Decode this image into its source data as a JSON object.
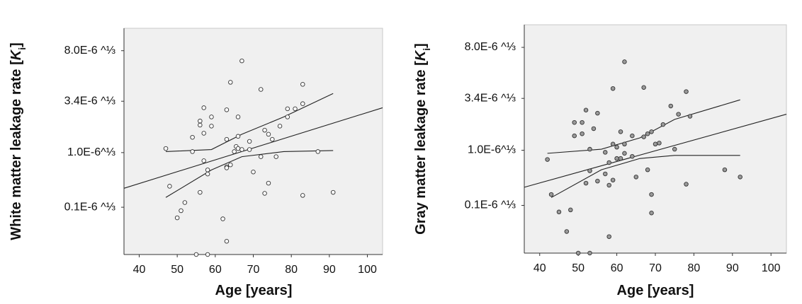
{
  "chart_data": [
    {
      "type": "scatter",
      "ylabel": [
        "White matter leakage rate [",
        "K",
        "i",
        "]"
      ],
      "xlabel": "Age [years]",
      "xlim": [
        36,
        104
      ],
      "xticks": [
        40,
        50,
        60,
        70,
        80,
        90,
        100
      ],
      "ylim": [
        0,
        0.0222
      ],
      "yticks": [
        {
          "value": 0.00464,
          "label": "0.1E-6 ^⅓"
        },
        {
          "value": 0.01,
          "label": "1.0E-6^⅓"
        },
        {
          "value": 0.01504,
          "label": "3.4E-6 ^⅓"
        },
        {
          "value": 0.02,
          "label": "8.0E-6 ^⅓"
        }
      ],
      "background": "#f0f0f0",
      "points": {
        "color": "#ffffff",
        "x": [
          47,
          48,
          50,
          51,
          52,
          54,
          54,
          55,
          56,
          56,
          56,
          57,
          57,
          57,
          58,
          58,
          59,
          59,
          62,
          63,
          63,
          63,
          63,
          63,
          64,
          64,
          65,
          65.5,
          66,
          66,
          66,
          67,
          67,
          69,
          69,
          70,
          72,
          72,
          73,
          73,
          74,
          74,
          75,
          76,
          77,
          79,
          79,
          81,
          83,
          83,
          83,
          87,
          91,
          58
        ],
        "values": [
          0.0104,
          0.0067,
          0.0036,
          0.0043,
          0.0051,
          0.0115,
          0.0101,
          0.0,
          0.0061,
          0.0127,
          0.0131,
          0.0119,
          0.0144,
          0.0092,
          0.0083,
          0.0079,
          0.0135,
          0.0126,
          0.0035,
          0.0013,
          0.0142,
          0.0113,
          0.0086,
          0.0085,
          0.0169,
          0.0088,
          0.0101,
          0.0106,
          0.0135,
          0.0116,
          0.0104,
          0.019,
          0.0103,
          0.0111,
          0.0103,
          0.0081,
          0.0162,
          0.0096,
          0.006,
          0.0122,
          0.0118,
          0.007,
          0.0113,
          0.0096,
          0.0126,
          0.0143,
          0.0135,
          0.0143,
          0.0167,
          0.0148,
          0.0058,
          0.0101,
          0.0061,
          0.0
        ]
      },
      "fit": {
        "x": [
          36,
          104
        ],
        "values": [
          0.0065,
          0.0144
        ]
      },
      "upper": {
        "x": [
          47,
          59,
          67,
          78,
          91
        ],
        "values": [
          0.0101,
          0.0103,
          0.0118,
          0.0135,
          0.0158
        ]
      },
      "lower": {
        "x": [
          47,
          59,
          67,
          78,
          91
        ],
        "values": [
          0.0056,
          0.0083,
          0.0096,
          0.0101,
          0.0102
        ]
      }
    },
    {
      "type": "scatter",
      "ylabel": [
        "Gray matter leakage rate [",
        "K",
        "i",
        "]"
      ],
      "xlabel": "Age [years]",
      "xlim": [
        36,
        104
      ],
      "xticks": [
        40,
        50,
        60,
        70,
        80,
        90,
        100
      ],
      "ylim": [
        0,
        0.0222
      ],
      "yticks": [
        {
          "value": 0.00464,
          "label": "0.1E-6 ^⅓"
        },
        {
          "value": 0.01,
          "label": "1.0E-6^⅓"
        },
        {
          "value": 0.01504,
          "label": "3.4E-6 ^⅓"
        },
        {
          "value": 0.02,
          "label": "8.0E-6 ^⅓"
        }
      ],
      "background": "#f0f0f0",
      "points": {
        "color": "#9a9a9a",
        "x": [
          42,
          43,
          45,
          47,
          48,
          49,
          49,
          50,
          51,
          51,
          52,
          52,
          53,
          53,
          54,
          53,
          55,
          55,
          57,
          57,
          58,
          58,
          58,
          59,
          59,
          59,
          60,
          60,
          61,
          61,
          62,
          62,
          62,
          64,
          64,
          65,
          67,
          67,
          68,
          68,
          69,
          69,
          69,
          70,
          72,
          71,
          74,
          75,
          76,
          78,
          78,
          79,
          88,
          92
        ],
        "values": [
          0.0091,
          0.0057,
          0.004,
          0.0021,
          0.0042,
          0.0127,
          0.0114,
          0.0,
          0.0116,
          0.0127,
          0.0068,
          0.0139,
          0.008,
          0.0,
          0.0121,
          0.0101,
          0.007,
          0.0136,
          0.0098,
          0.0077,
          0.0066,
          0.0088,
          0.0016,
          0.0106,
          0.0071,
          0.016,
          0.0092,
          0.0103,
          0.0092,
          0.0118,
          0.0106,
          0.0186,
          0.0097,
          0.0114,
          0.0094,
          0.0074,
          0.0161,
          0.0113,
          0.0081,
          0.0116,
          0.0039,
          0.0118,
          0.0057,
          0.0106,
          0.0125,
          0.0107,
          0.0143,
          0.0101,
          0.0135,
          0.0157,
          0.0067,
          0.0133,
          0.0081,
          0.0074
        ]
      },
      "fit": {
        "x": [
          36,
          104
        ],
        "values": [
          0.0064,
          0.0135
        ]
      },
      "upper": {
        "x": [
          42,
          56,
          66,
          75,
          92
        ],
        "values": [
          0.0097,
          0.0101,
          0.0112,
          0.013,
          0.0149
        ]
      },
      "lower": {
        "x": [
          43,
          56,
          66,
          75,
          92
        ],
        "values": [
          0.0054,
          0.0081,
          0.0092,
          0.0095,
          0.0095
        ]
      }
    }
  ]
}
